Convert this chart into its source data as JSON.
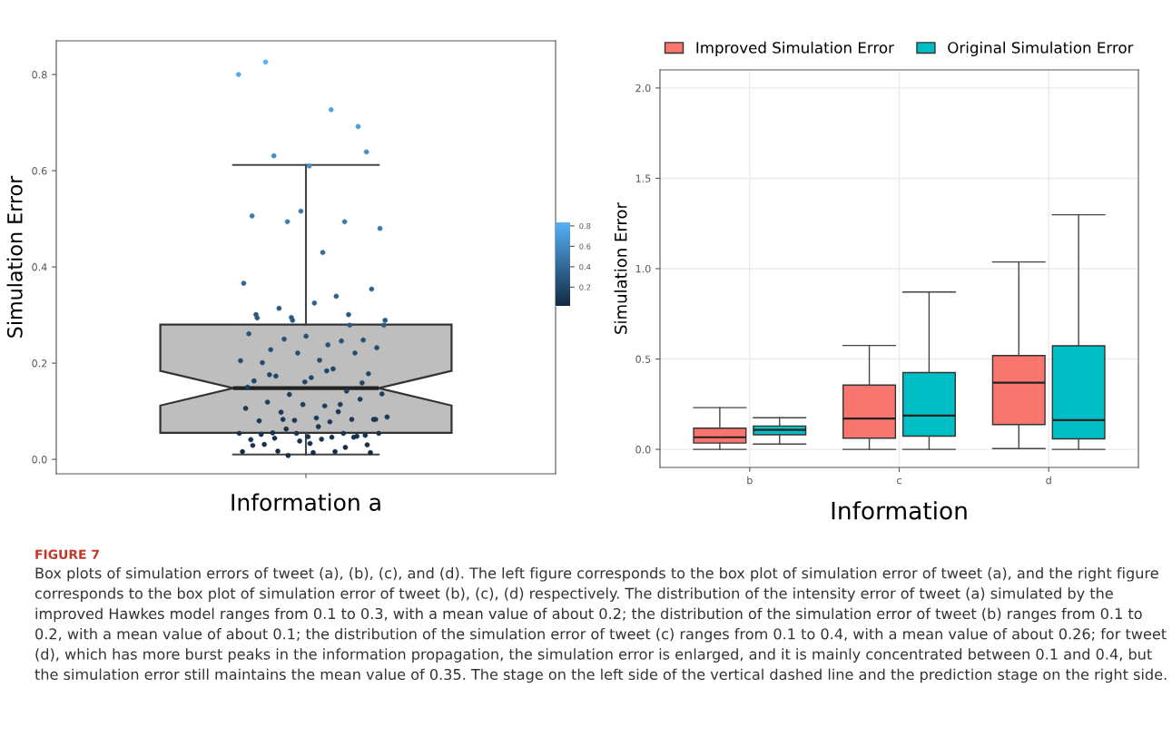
{
  "chart_data": [
    {
      "type": "box",
      "categories": [
        null
      ],
      "xlabel": "Information a",
      "ylabel": "Simulation Error",
      "tick_labels": "y",
      "grid": false,
      "ylim": [
        -0.03,
        0.87
      ],
      "yticks": [
        {
          "value": 0,
          "label": "0.0"
        },
        {
          "value": 0.2,
          "label": "0.2"
        },
        {
          "value": 0.4,
          "label": "0.4"
        },
        {
          "value": 0.6,
          "label": "0.6"
        },
        {
          "value": 0.8,
          "label": "0.8"
        }
      ],
      "clim": [
        0.008,
        0.826
      ],
      "cticks": [
        0.2,
        0.4,
        0.6,
        0.8
      ],
      "series": [
        {
          "type": "box",
          "color": "#bebebe",
          "boxes": [
            {
              "low": 0.01,
              "q1": 0.055,
              "median": 0.148,
              "q3": 0.28,
              "high": 0.612
            }
          ]
        },
        {
          "type": "scatter",
          "marker": "circle",
          "x": [
            null,
            null,
            null,
            null,
            null,
            null,
            null,
            null,
            null,
            null,
            null,
            null,
            null,
            null,
            null,
            null,
            null,
            null,
            null,
            null,
            null,
            null,
            null,
            null,
            null,
            null,
            null,
            null,
            null,
            null,
            null,
            null,
            null,
            null,
            null,
            null,
            null,
            null,
            null,
            null,
            null,
            null,
            null,
            null,
            null,
            null,
            null,
            null,
            null,
            null,
            null,
            null,
            null,
            null,
            null,
            null,
            null,
            null,
            null,
            null,
            null,
            null,
            null,
            null,
            null,
            null,
            null,
            null,
            null,
            null,
            null,
            null,
            null,
            null,
            null,
            null,
            null,
            null,
            null,
            null,
            null,
            null,
            null,
            null,
            null,
            null,
            null,
            null,
            null,
            null,
            null,
            null,
            null,
            null,
            null,
            null,
            null
          ],
          "values": [
            0.8,
            0.727,
            0.631,
            0.639,
            0.61,
            0.506,
            0.494,
            0.494,
            0.48,
            0.43,
            0.826,
            0.692,
            0.516,
            0.366,
            0.339,
            0.314,
            0.354,
            0.325,
            0.294,
            0.279,
            0.289,
            0.289,
            0.238,
            0.228,
            0.248,
            0.256,
            0.261,
            0.246,
            0.25,
            0.232,
            0.206,
            0.201,
            0.221,
            0.221,
            0.205,
            0.188,
            0.173,
            0.178,
            0.17,
            0.163,
            0.142,
            0.135,
            0.136,
            0.111,
            0.119,
            0.125,
            0.114,
            0.106,
            0.099,
            0.098,
            0.083,
            0.086,
            0.08,
            0.083,
            0.081,
            0.088,
            0.078,
            0.055,
            0.05,
            0.047,
            0.041,
            0.054,
            0.063,
            0.054,
            0.042,
            0.031,
            0.048,
            0.038,
            0.016,
            0.016,
            0.017,
            0.014,
            0.014,
            0.301,
            0.301,
            0.295,
            0.279,
            0.184,
            0.176,
            0.159,
            0.161,
            0.15,
            0.114,
            0.083,
            0.083,
            0.068,
            0.052,
            0.046,
            0.054,
            0.054,
            0.046,
            0.044,
            0.03,
            0.033,
            0.029,
            0.025,
            0.008
          ],
          "colors": [
            "#53aaee",
            "#4fa4e5",
            "#4590ca",
            "#4590ca",
            "#4590ca",
            "#3b7baf",
            "#3b7baf",
            "#3b7baf",
            "#3b7baf",
            "#356e9d",
            "#56b1f7",
            "#4c9ddc",
            "#3b7baf",
            "#316794",
            "#2e618b",
            "#2a5a82",
            "#2e618b",
            "#2e618b",
            "#2a5a82",
            "#2a5a82",
            "#2a5a82",
            "#2a5a82",
            "#275379",
            "#244d70",
            "#275379",
            "#275379",
            "#275379",
            "#275379",
            "#275379",
            "#244d70",
            "#244d70",
            "#244d70",
            "#244d70",
            "#244d70",
            "#244d70",
            "#204667",
            "#204667",
            "#204667",
            "#204667",
            "#204667",
            "#1d3f5e",
            "#1d3f5e",
            "#1d3f5e",
            "#1d3f5e",
            "#1d3f5e",
            "#1d3f5e",
            "#1d3f5e",
            "#1a3855",
            "#1a3855",
            "#1a3855",
            "#1a3855",
            "#1a3855",
            "#1a3855",
            "#1a3855",
            "#1a3855",
            "#1a3855",
            "#1a3855",
            "#16324c",
            "#16324c",
            "#16324c",
            "#16324c",
            "#16324c",
            "#16324c",
            "#16324c",
            "#16324c",
            "#16324c",
            "#16324c",
            "#16324c",
            "#132b43",
            "#132b43",
            "#132b43",
            "#132b43",
            "#132b43",
            "#2a5a82",
            "#2a5a82",
            "#2a5a82",
            "#2a5a82",
            "#204667",
            "#204667",
            "#204667",
            "#204667",
            "#1d3f5e",
            "#1d3f5e",
            "#1a3855",
            "#1a3855",
            "#16324c",
            "#16324c",
            "#16324c",
            "#16324c",
            "#16324c",
            "#16324c",
            "#16324c",
            "#16324c",
            "#16324c",
            "#16324c",
            "#132b43",
            "#132b43"
          ]
        }
      ]
    },
    {
      "type": "box",
      "categories": [
        "b",
        "c",
        "d"
      ],
      "xlabel": "Information",
      "ylabel": "Simulation Error",
      "grid": true,
      "legend": "top",
      "ylim": [
        -0.1,
        2.1
      ],
      "yticks": [
        {
          "value": 0,
          "label": "0.0"
        },
        {
          "value": 0.5,
          "label": "0.5"
        },
        {
          "value": 1.0,
          "label": "1.0"
        },
        {
          "value": 1.5,
          "label": "1.5"
        },
        {
          "value": 2.0,
          "label": "2.0"
        }
      ],
      "series": [
        {
          "name": "Improved Simulation Error",
          "color": "#f8766d",
          "boxes": [
            {
              "low": 0.0,
              "q1": 0.035,
              "median": 0.067,
              "q3": 0.117,
              "high": 0.231
            },
            {
              "low": 0.0,
              "q1": 0.062,
              "median": 0.171,
              "q3": 0.356,
              "high": 0.575
            },
            {
              "low": 0.004,
              "q1": 0.137,
              "median": 0.369,
              "q3": 0.519,
              "high": 1.037
            }
          ]
        },
        {
          "name": "Original Simulation Error",
          "color": "#00bfc4",
          "boxes": [
            {
              "low": 0.029,
              "q1": 0.081,
              "median": 0.108,
              "q3": 0.129,
              "high": 0.175
            },
            {
              "low": 0.0,
              "q1": 0.073,
              "median": 0.187,
              "q3": 0.425,
              "high": 0.871
            },
            {
              "low": 0.0,
              "q1": 0.058,
              "median": 0.162,
              "q3": 0.573,
              "high": 1.298
            }
          ]
        }
      ],
      "annotations": [
        "FIGURE 7",
        "Box plots of simulation errors of tweet (a), (b), (c), and (d). The left figure corresponds to the box plot of simulation error of tweet (a), and the right figure corresponds to the box plot of simulation error of tweet (b), (c), (d) respectively. The distribution of the intensity error of tweet (a) simulated by the improved Hawkes model ranges from 0.1 to 0.3, with a mean value of about 0.2; the distribution of the simulation error of tweet (b) ranges from 0.1 to 0.2, with a mean value of about 0.1; the distribution of the simulation error of tweet (c) ranges from 0.1 to 0.4, with a mean value of about 0.26; for tweet (d), which has more burst peaks in the information propagation, the simulation error is enlarged, and it is mainly concentrated between 0.1 and 0.4, but the simulation error still maintains the mean value of 0.35. The stage on the left side of the vertical dashed line and the prediction stage on the right side."
      ]
    }
  ]
}
